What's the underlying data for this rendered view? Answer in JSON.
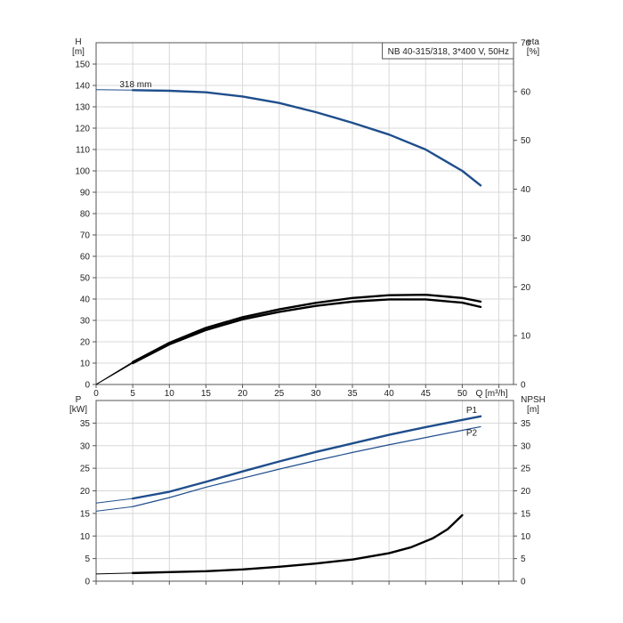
{
  "chart_data": [
    {
      "type": "line",
      "title": "NB 40-315/318, 3*400 V, 50Hz",
      "y_axis_left": {
        "label": "H",
        "unit": "[m]",
        "range": [
          0,
          160
        ],
        "ticks": [
          0,
          10,
          20,
          30,
          40,
          50,
          60,
          70,
          80,
          90,
          100,
          110,
          120,
          130,
          140,
          150
        ]
      },
      "y_axis_right": {
        "label": "eta",
        "unit": "[%]",
        "range": [
          0,
          70
        ],
        "ticks": [
          0,
          10,
          20,
          30,
          40,
          50,
          60,
          70
        ]
      },
      "x_axis": {
        "label": "Q [m³/h]",
        "range": [
          0,
          57
        ],
        "ticks": [
          0,
          5,
          10,
          15,
          20,
          25,
          30,
          35,
          40,
          45,
          50,
          55
        ],
        "tick_labels": [
          "0",
          "5",
          "10",
          "15",
          "20",
          "25",
          "30",
          "35",
          "40",
          "45",
          "50"
        ]
      },
      "grid": true,
      "annotations": [
        {
          "text": "318 mm",
          "x": 3.2,
          "y": 138
        }
      ],
      "series": [
        {
          "name": "318 mm",
          "axis": "left",
          "color": "#1f4e8c",
          "x": [
            0,
            5,
            10,
            15,
            20,
            25,
            30,
            35,
            40,
            45,
            50,
            52.5
          ],
          "y": [
            138,
            137.8,
            137.5,
            136.8,
            134.8,
            131.8,
            127.5,
            122.5,
            117,
            110,
            100,
            93.2
          ]
        },
        {
          "axis": "left",
          "color": "#000000",
          "x": [
            0,
            5,
            10,
            15,
            20,
            25,
            30,
            35,
            40,
            45,
            50,
            52.5
          ],
          "y": [
            0,
            10.5,
            19.5,
            26.5,
            31.5,
            35.2,
            38.2,
            40.5,
            41.8,
            42,
            40.5,
            38.8
          ]
        },
        {
          "axis": "left",
          "color": "#000000",
          "x": [
            0,
            5,
            10,
            15,
            20,
            25,
            30,
            35,
            40,
            45,
            50,
            52.5
          ],
          "y": [
            0,
            10,
            18.8,
            25.5,
            30.5,
            34,
            36.8,
            38.8,
            39.8,
            39.8,
            38.3,
            36.3
          ]
        }
      ]
    },
    {
      "type": "line",
      "y_axis_left": {
        "label": "P",
        "unit": "[kW]",
        "range": [
          0,
          40
        ],
        "ticks": [
          0,
          5,
          10,
          15,
          20,
          25,
          30,
          35
        ]
      },
      "y_axis_right": {
        "label": "NPSH",
        "unit": "[m]",
        "range": [
          0,
          40
        ],
        "ticks": [
          0,
          5,
          10,
          15,
          20,
          25,
          30,
          35
        ]
      },
      "x_axis": {
        "range": [
          0,
          57
        ],
        "ticks": [
          0,
          5,
          10,
          15,
          20,
          25,
          30,
          35,
          40,
          45,
          50,
          55
        ]
      },
      "grid": true,
      "series": [
        {
          "name": "P1",
          "axis": "left",
          "color": "#1f4e8c",
          "x": [
            0,
            5,
            10,
            15,
            20,
            25,
            30,
            35,
            40,
            45,
            50,
            52.5
          ],
          "y": [
            17.3,
            18.3,
            19.8,
            22,
            24.3,
            26.5,
            28.6,
            30.5,
            32.4,
            34.1,
            35.7,
            36.5
          ]
        },
        {
          "name": "P2",
          "axis": "left",
          "color": "#1f4e8c",
          "x": [
            0,
            5,
            10,
            15,
            20,
            25,
            30,
            35,
            40,
            45,
            50,
            52.5
          ],
          "y": [
            15.5,
            16.5,
            18.5,
            20.8,
            22.8,
            24.8,
            26.7,
            28.5,
            30.2,
            31.8,
            33.4,
            34.2
          ]
        },
        {
          "axis": "right",
          "color": "#000000",
          "x": [
            0,
            5,
            10,
            15,
            20,
            25,
            30,
            35,
            40,
            43,
            46,
            48,
            50
          ],
          "y": [
            1.6,
            1.8,
            2,
            2.2,
            2.6,
            3.2,
            3.9,
            4.8,
            6.2,
            7.5,
            9.5,
            11.5,
            14.6
          ]
        }
      ]
    }
  ]
}
